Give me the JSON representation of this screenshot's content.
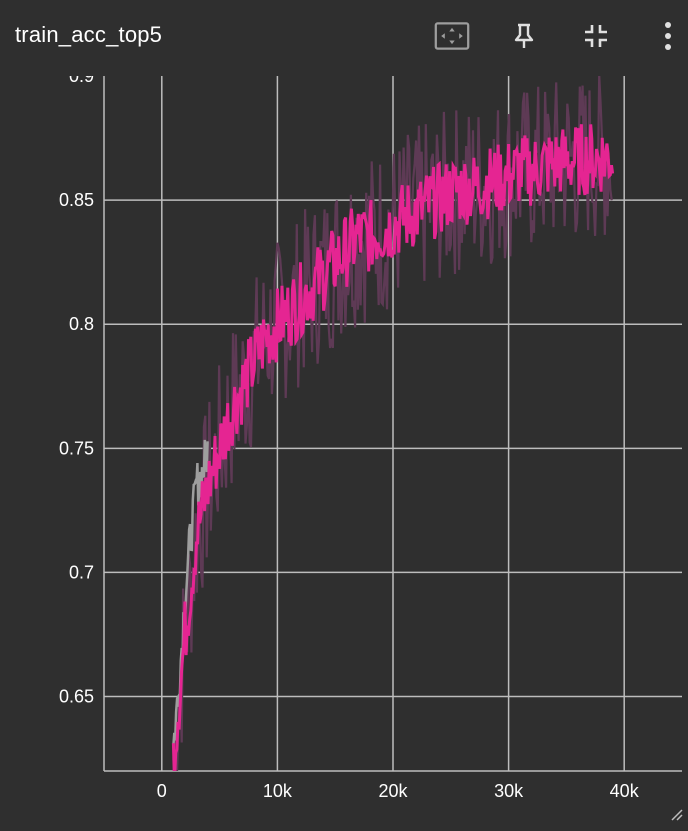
{
  "header": {
    "title": "train_acc_top5",
    "icons": [
      "fit-domain-icon",
      "pin-icon",
      "collapse-icon",
      "more-vert-icon"
    ]
  },
  "colors": {
    "background": "#2f2f2f",
    "grid": "#bdbdbd",
    "smoothed_series": "#e52592",
    "raw_series": "#5e3a55",
    "early_series": "#9e9e9e"
  },
  "chart_data": {
    "type": "line",
    "title": "train_acc_top5",
    "xlabel": "",
    "ylabel": "",
    "xlim": [
      -5000,
      45000
    ],
    "ylim": [
      0.62,
      0.9
    ],
    "x_ticks": [
      0,
      10000,
      20000,
      30000,
      40000
    ],
    "x_tick_labels": [
      "0",
      "10k",
      "20k",
      "30k",
      "40k"
    ],
    "y_ticks": [
      0.65,
      0.7,
      0.75,
      0.8,
      0.85
    ],
    "y_tick_labels": [
      "0.65",
      "0.7",
      "0.75",
      "0.8",
      "0.85"
    ],
    "top_partial_tick_label": "0.9",
    "grid": true,
    "legend": "none",
    "series": [
      {
        "role": "raw",
        "x": [
          1000,
          2000,
          3000,
          4000,
          5000,
          6000,
          7000,
          8000,
          9000,
          10000,
          11000,
          12000,
          13000,
          14000,
          15000,
          16000,
          17000,
          18000,
          19000,
          20000,
          21000,
          22000,
          23000,
          24000,
          25000,
          26000,
          27000,
          28000,
          29000,
          30000,
          31000,
          32000,
          33000,
          34000,
          35000,
          36000,
          37000,
          38000,
          39000
        ],
        "y": [
          0.625,
          0.675,
          0.715,
          0.735,
          0.75,
          0.765,
          0.775,
          0.785,
          0.795,
          0.8,
          0.805,
          0.81,
          0.815,
          0.82,
          0.825,
          0.83,
          0.835,
          0.835,
          0.838,
          0.84,
          0.843,
          0.845,
          0.848,
          0.85,
          0.853,
          0.855,
          0.855,
          0.857,
          0.858,
          0.86,
          0.862,
          0.862,
          0.864,
          0.865,
          0.866,
          0.866,
          0.867,
          0.867,
          0.868
        ]
      },
      {
        "role": "smoothed",
        "x": [
          1000,
          2000,
          3000,
          4000,
          5000,
          6000,
          7000,
          8000,
          9000,
          10000,
          11000,
          12000,
          13000,
          14000,
          15000,
          16000,
          17000,
          18000,
          19000,
          20000,
          21000,
          22000,
          23000,
          24000,
          25000,
          26000,
          27000,
          28000,
          29000,
          30000,
          31000,
          32000,
          33000,
          34000,
          35000,
          36000,
          37000,
          38000,
          39000
        ],
        "y": [
          0.625,
          0.675,
          0.715,
          0.735,
          0.75,
          0.765,
          0.775,
          0.785,
          0.795,
          0.8,
          0.805,
          0.81,
          0.815,
          0.82,
          0.825,
          0.83,
          0.835,
          0.835,
          0.838,
          0.84,
          0.843,
          0.845,
          0.848,
          0.85,
          0.853,
          0.855,
          0.855,
          0.857,
          0.858,
          0.86,
          0.862,
          0.862,
          0.864,
          0.865,
          0.866,
          0.866,
          0.867,
          0.867,
          0.868
        ]
      },
      {
        "role": "early",
        "x": [
          1000,
          1500,
          2000,
          2500,
          3000,
          3500,
          4000
        ],
        "y": [
          0.63,
          0.655,
          0.69,
          0.715,
          0.735,
          0.74,
          0.75
        ]
      }
    ]
  }
}
